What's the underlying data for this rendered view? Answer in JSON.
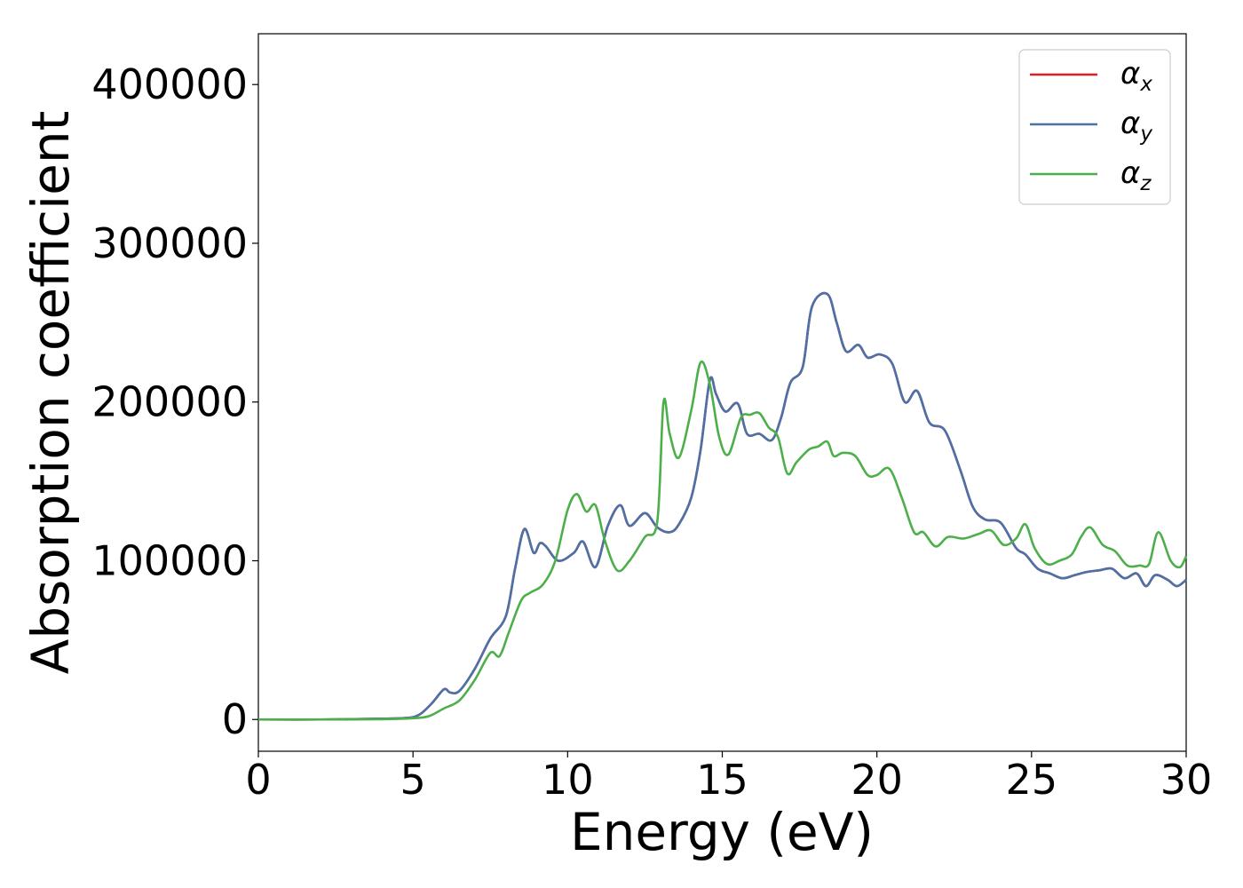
{
  "chart_data": {
    "type": "line",
    "xlabel": "Energy (eV)",
    "ylabel": "Absorption coefficient",
    "xlim": [
      0,
      30
    ],
    "ylim": [
      -20000,
      432000
    ],
    "xticks": [
      0,
      5,
      10,
      15,
      20,
      25,
      30
    ],
    "xtick_labels": [
      "0",
      "5",
      "10",
      "15",
      "20",
      "25",
      "30"
    ],
    "yticks": [
      0,
      100000,
      200000,
      300000,
      400000
    ],
    "ytick_labels": [
      "0",
      "100000",
      "200000",
      "300000",
      "400000"
    ],
    "grid": false,
    "legend_position": "top-right",
    "series": [
      {
        "name": "α",
        "subscript": "x",
        "color": "#e41a1c",
        "x": [
          0,
          2,
          4,
          4.8,
          5.2,
          5.6,
          6.0,
          6.2,
          6.5,
          7.0,
          7.5,
          8.0,
          8.3,
          8.6,
          8.9,
          9.1,
          9.3,
          9.7,
          10.2,
          10.5,
          10.9,
          11.3,
          11.7,
          12.0,
          12.5,
          12.9,
          13.3,
          13.6,
          14.0,
          14.3,
          14.6,
          14.8,
          15.1,
          15.5,
          15.8,
          16.2,
          16.6,
          16.9,
          17.2,
          17.6,
          17.9,
          18.4,
          18.7,
          19.0,
          19.4,
          19.7,
          20.1,
          20.5,
          20.9,
          21.3,
          21.7,
          22.2,
          22.7,
          23.1,
          23.5,
          24.0,
          24.5,
          24.8,
          25.2,
          25.6,
          26.0,
          26.4,
          26.8,
          27.2,
          27.6,
          28.0,
          28.4,
          28.7,
          29.0,
          29.4,
          29.7,
          30.0
        ],
        "y": [
          0,
          0,
          500,
          1000,
          3000,
          10000,
          19000,
          17000,
          18000,
          32000,
          51000,
          65000,
          95000,
          120000,
          105000,
          111000,
          109000,
          100000,
          105000,
          112000,
          96000,
          122000,
          135000,
          122000,
          130000,
          121000,
          118000,
          123000,
          140000,
          170000,
          214000,
          205000,
          194000,
          199000,
          180000,
          180000,
          176000,
          190000,
          212000,
          222000,
          260000,
          268000,
          250000,
          232000,
          236000,
          228000,
          230000,
          224000,
          200000,
          207000,
          187000,
          182000,
          157000,
          134000,
          126000,
          124000,
          108000,
          104000,
          95000,
          92000,
          89000,
          91000,
          93000,
          94000,
          95000,
          89000,
          92000,
          84000,
          91000,
          88000,
          84000,
          88000
        ]
      },
      {
        "name": "α",
        "subscript": "y",
        "color": "#4a72a8",
        "x": [
          0,
          2,
          4,
          4.8,
          5.2,
          5.6,
          6.0,
          6.2,
          6.5,
          7.0,
          7.5,
          8.0,
          8.3,
          8.6,
          8.9,
          9.1,
          9.3,
          9.7,
          10.2,
          10.5,
          10.9,
          11.3,
          11.7,
          12.0,
          12.5,
          12.9,
          13.3,
          13.6,
          14.0,
          14.3,
          14.6,
          14.8,
          15.1,
          15.5,
          15.8,
          16.2,
          16.6,
          16.9,
          17.2,
          17.6,
          17.9,
          18.4,
          18.7,
          19.0,
          19.4,
          19.7,
          20.1,
          20.5,
          20.9,
          21.3,
          21.7,
          22.2,
          22.7,
          23.1,
          23.5,
          24.0,
          24.5,
          24.8,
          25.2,
          25.6,
          26.0,
          26.4,
          26.8,
          27.2,
          27.6,
          28.0,
          28.4,
          28.7,
          29.0,
          29.4,
          29.7,
          30.0
        ],
        "y": [
          0,
          0,
          500,
          1000,
          3000,
          10000,
          19000,
          17000,
          18000,
          32000,
          51000,
          65000,
          95000,
          120000,
          105000,
          111000,
          109000,
          100000,
          105000,
          112000,
          96000,
          122000,
          135000,
          122000,
          130000,
          121000,
          118000,
          123000,
          140000,
          170000,
          214000,
          205000,
          194000,
          199000,
          180000,
          180000,
          176000,
          190000,
          212000,
          222000,
          260000,
          268000,
          250000,
          232000,
          236000,
          228000,
          230000,
          224000,
          200000,
          207000,
          187000,
          182000,
          157000,
          134000,
          126000,
          124000,
          108000,
          104000,
          95000,
          92000,
          89000,
          91000,
          93000,
          94000,
          95000,
          89000,
          92000,
          84000,
          91000,
          88000,
          84000,
          88000
        ]
      },
      {
        "name": "α",
        "subscript": "z",
        "color": "#4daf4a",
        "x": [
          0,
          2,
          4,
          5.0,
          5.5,
          6.0,
          6.5,
          7.0,
          7.5,
          7.8,
          8.1,
          8.5,
          8.8,
          9.2,
          9.6,
          10.0,
          10.3,
          10.6,
          10.9,
          11.2,
          11.6,
          12.0,
          12.5,
          12.9,
          13.1,
          13.3,
          13.6,
          14.0,
          14.3,
          14.6,
          14.9,
          15.2,
          15.6,
          15.9,
          16.2,
          16.5,
          16.8,
          17.1,
          17.4,
          17.8,
          18.1,
          18.4,
          18.6,
          18.9,
          19.3,
          19.7,
          20.0,
          20.4,
          20.8,
          21.2,
          21.5,
          21.9,
          22.3,
          22.8,
          23.3,
          23.7,
          24.1,
          24.5,
          24.8,
          25.1,
          25.5,
          25.9,
          26.3,
          26.6,
          26.9,
          27.3,
          27.7,
          28.1,
          28.5,
          28.8,
          29.1,
          29.5,
          29.8,
          30.0
        ],
        "y": [
          0,
          0,
          200,
          800,
          2000,
          7000,
          12000,
          25000,
          42000,
          40000,
          55000,
          75000,
          80000,
          85000,
          100000,
          132000,
          142000,
          131000,
          135000,
          113000,
          94000,
          100000,
          115000,
          125000,
          200000,
          180000,
          165000,
          195000,
          225000,
          211000,
          178000,
          167000,
          190000,
          192000,
          193000,
          184000,
          178000,
          155000,
          162000,
          170000,
          172000,
          175000,
          166000,
          168000,
          166000,
          154000,
          154000,
          158000,
          140000,
          118000,
          118000,
          109000,
          115000,
          114000,
          117000,
          119000,
          110000,
          114000,
          123000,
          108000,
          98000,
          100000,
          104000,
          115000,
          121000,
          110000,
          106000,
          97000,
          97000,
          98000,
          118000,
          100000,
          96000,
          103000
        ]
      }
    ]
  }
}
